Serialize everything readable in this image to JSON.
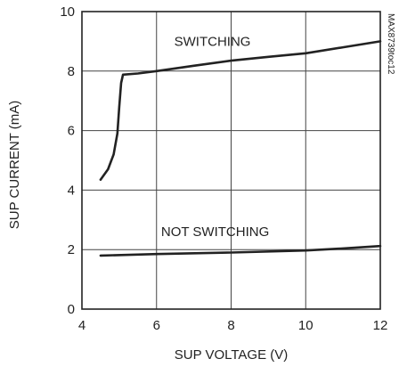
{
  "chart_data": {
    "type": "line",
    "xlabel": "SUP VOLTAGE (V)",
    "ylabel": "SUP CURRENT (mA)",
    "xlim": [
      4,
      12
    ],
    "ylim": [
      0,
      10
    ],
    "xticks": [
      4,
      6,
      8,
      10,
      12
    ],
    "yticks": [
      0,
      2,
      4,
      6,
      8,
      10
    ],
    "grid": true,
    "annotations": [
      {
        "text": "SWITCHING",
        "x": 7.5,
        "y": 9.0
      },
      {
        "text": "NOT SWITCHING",
        "x": 7.5,
        "y": 2.6
      }
    ],
    "side_label": "MAX8739toc12",
    "series": [
      {
        "name": "SWITCHING",
        "x": [
          4.5,
          4.7,
          4.85,
          4.95,
          5.0,
          5.05,
          5.1,
          5.5,
          6,
          7,
          8,
          9,
          10,
          11,
          12
        ],
        "y": [
          4.35,
          4.7,
          5.2,
          5.9,
          6.8,
          7.6,
          7.88,
          7.92,
          8.0,
          8.18,
          8.35,
          8.48,
          8.6,
          8.8,
          9.0
        ]
      },
      {
        "name": "NOT SWITCHING",
        "x": [
          4.5,
          6,
          8,
          10,
          11,
          12
        ],
        "y": [
          1.8,
          1.85,
          1.9,
          1.97,
          2.04,
          2.12
        ]
      }
    ],
    "line_color": "#222222"
  }
}
